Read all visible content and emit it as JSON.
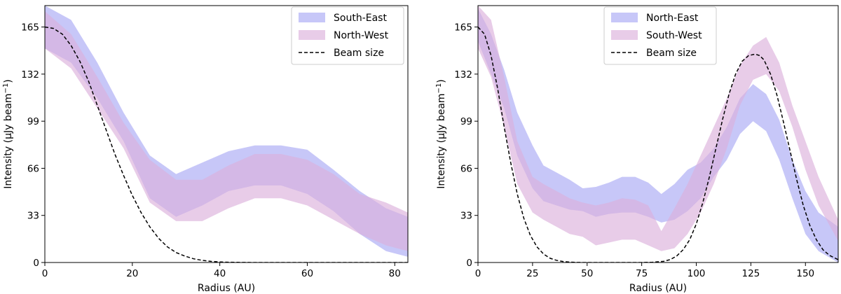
{
  "chart_data": [
    {
      "type": "area",
      "xlabel": "Radius (AU)",
      "ylabel": "Intensity (μJy beam",
      "ylabel_sup": "−1",
      "ylabel_close": ")",
      "xlim": [
        0,
        83
      ],
      "ylim": [
        0,
        180
      ],
      "xticks": [
        0,
        20,
        40,
        60,
        80
      ],
      "yticks": [
        0,
        33,
        66,
        99,
        132,
        165
      ],
      "legend_position": "top-right",
      "series": [
        {
          "name": "South-East",
          "color": "#b4b4f5",
          "opacity": 0.75,
          "x": [
            0,
            6,
            12,
            18,
            24,
            30,
            36,
            42,
            48,
            54,
            60,
            66,
            72,
            78,
            83
          ],
          "upper": [
            180,
            170,
            140,
            105,
            75,
            62,
            70,
            78,
            82,
            82,
            79,
            65,
            50,
            38,
            32
          ],
          "lower": [
            150,
            140,
            115,
            85,
            45,
            32,
            40,
            50,
            54,
            54,
            48,
            36,
            20,
            8,
            4
          ]
        },
        {
          "name": "North-West",
          "color": "#dbb0dc",
          "opacity": 0.65,
          "x": [
            0,
            6,
            12,
            18,
            24,
            30,
            36,
            42,
            48,
            54,
            60,
            66,
            72,
            78,
            83
          ],
          "upper": [
            176,
            160,
            130,
            98,
            72,
            58,
            58,
            68,
            76,
            76,
            72,
            62,
            48,
            42,
            35
          ],
          "lower": [
            150,
            136,
            108,
            80,
            42,
            29,
            29,
            38,
            45,
            45,
            40,
            30,
            20,
            12,
            8
          ]
        }
      ],
      "beam": {
        "name": "Beam size",
        "x": [
          0,
          2,
          4,
          6,
          8,
          10,
          12,
          14,
          16,
          18,
          20,
          22,
          24,
          26,
          28,
          30,
          32,
          34,
          36,
          38,
          40,
          42,
          44,
          46,
          48,
          50,
          60,
          70,
          83
        ],
        "y": [
          165,
          164,
          160,
          152,
          141,
          127,
          110,
          93,
          76,
          61,
          47,
          35,
          25,
          17,
          11,
          7,
          4.5,
          2.6,
          1.5,
          0.8,
          0.4,
          0.2,
          0.1,
          0.05,
          0,
          0,
          0,
          0,
          0
        ]
      }
    },
    {
      "type": "area",
      "xlabel": "Radius (AU)",
      "ylabel": "Intensity (μJy beam",
      "ylabel_sup": "−1",
      "ylabel_close": ")",
      "xlim": [
        0,
        165
      ],
      "ylim": [
        0,
        180
      ],
      "xticks": [
        0,
        25,
        50,
        75,
        100,
        125,
        150
      ],
      "yticks": [
        0,
        33,
        66,
        99,
        132,
        165
      ],
      "legend_position": "top-center",
      "series": [
        {
          "name": "North-East",
          "color": "#b4b4f5",
          "opacity": 0.75,
          "x": [
            0,
            6,
            12,
            18,
            25,
            30,
            36,
            42,
            48,
            54,
            60,
            66,
            72,
            78,
            84,
            90,
            96,
            102,
            108,
            114,
            120,
            126,
            132,
            138,
            144,
            150,
            156,
            165
          ],
          "upper": [
            178,
            160,
            135,
            105,
            82,
            68,
            63,
            58,
            52,
            53,
            56,
            60,
            60,
            56,
            48,
            55,
            65,
            70,
            80,
            95,
            115,
            125,
            118,
            100,
            72,
            50,
            35,
            25
          ],
          "lower": [
            155,
            132,
            108,
            75,
            52,
            43,
            40,
            37,
            36,
            32,
            34,
            35,
            35,
            32,
            28,
            30,
            36,
            45,
            60,
            72,
            90,
            99,
            92,
            72,
            45,
            20,
            8,
            0
          ]
        },
        {
          "name": "South-West",
          "color": "#dbb0dc",
          "opacity": 0.65,
          "x": [
            0,
            6,
            12,
            18,
            25,
            30,
            36,
            42,
            48,
            54,
            60,
            66,
            72,
            78,
            84,
            90,
            96,
            102,
            108,
            114,
            120,
            126,
            132,
            138,
            144,
            150,
            156,
            165
          ],
          "upper": [
            180,
            170,
            130,
            85,
            60,
            55,
            50,
            45,
            42,
            40,
            42,
            45,
            44,
            40,
            22,
            38,
            55,
            75,
            95,
            115,
            138,
            152,
            158,
            140,
            110,
            85,
            60,
            30
          ],
          "lower": [
            150,
            130,
            95,
            55,
            35,
            30,
            25,
            20,
            18,
            12,
            14,
            16,
            16,
            12,
            8,
            10,
            20,
            35,
            55,
            80,
            110,
            128,
            132,
            120,
            95,
            65,
            40,
            15
          ]
        }
      ],
      "beam": {
        "name": "Beam size",
        "x": [
          0,
          3,
          6,
          9,
          12,
          15,
          18,
          21,
          24,
          27,
          30,
          33,
          36,
          39,
          42,
          45,
          48,
          51,
          54,
          57,
          60,
          70,
          75,
          80,
          85,
          88,
          91,
          94,
          97,
          100,
          103,
          106,
          109,
          112,
          115,
          118,
          121,
          124,
          127,
          129,
          131,
          134,
          137,
          140,
          143,
          146,
          149,
          152,
          155,
          158,
          161,
          165
        ],
        "y": [
          165,
          160,
          145,
          122,
          95,
          70,
          48,
          31,
          19,
          11,
          6,
          3,
          1.5,
          0.7,
          0.3,
          0.1,
          0,
          0,
          0,
          0,
          0,
          0,
          0,
          0.2,
          0.8,
          2,
          4.5,
          9,
          16,
          27,
          42,
          60,
          80,
          100,
          118,
          132,
          141,
          145,
          146,
          145,
          142,
          132,
          117,
          98,
          78,
          58,
          40,
          26,
          16,
          9,
          5,
          2
        ]
      }
    }
  ]
}
